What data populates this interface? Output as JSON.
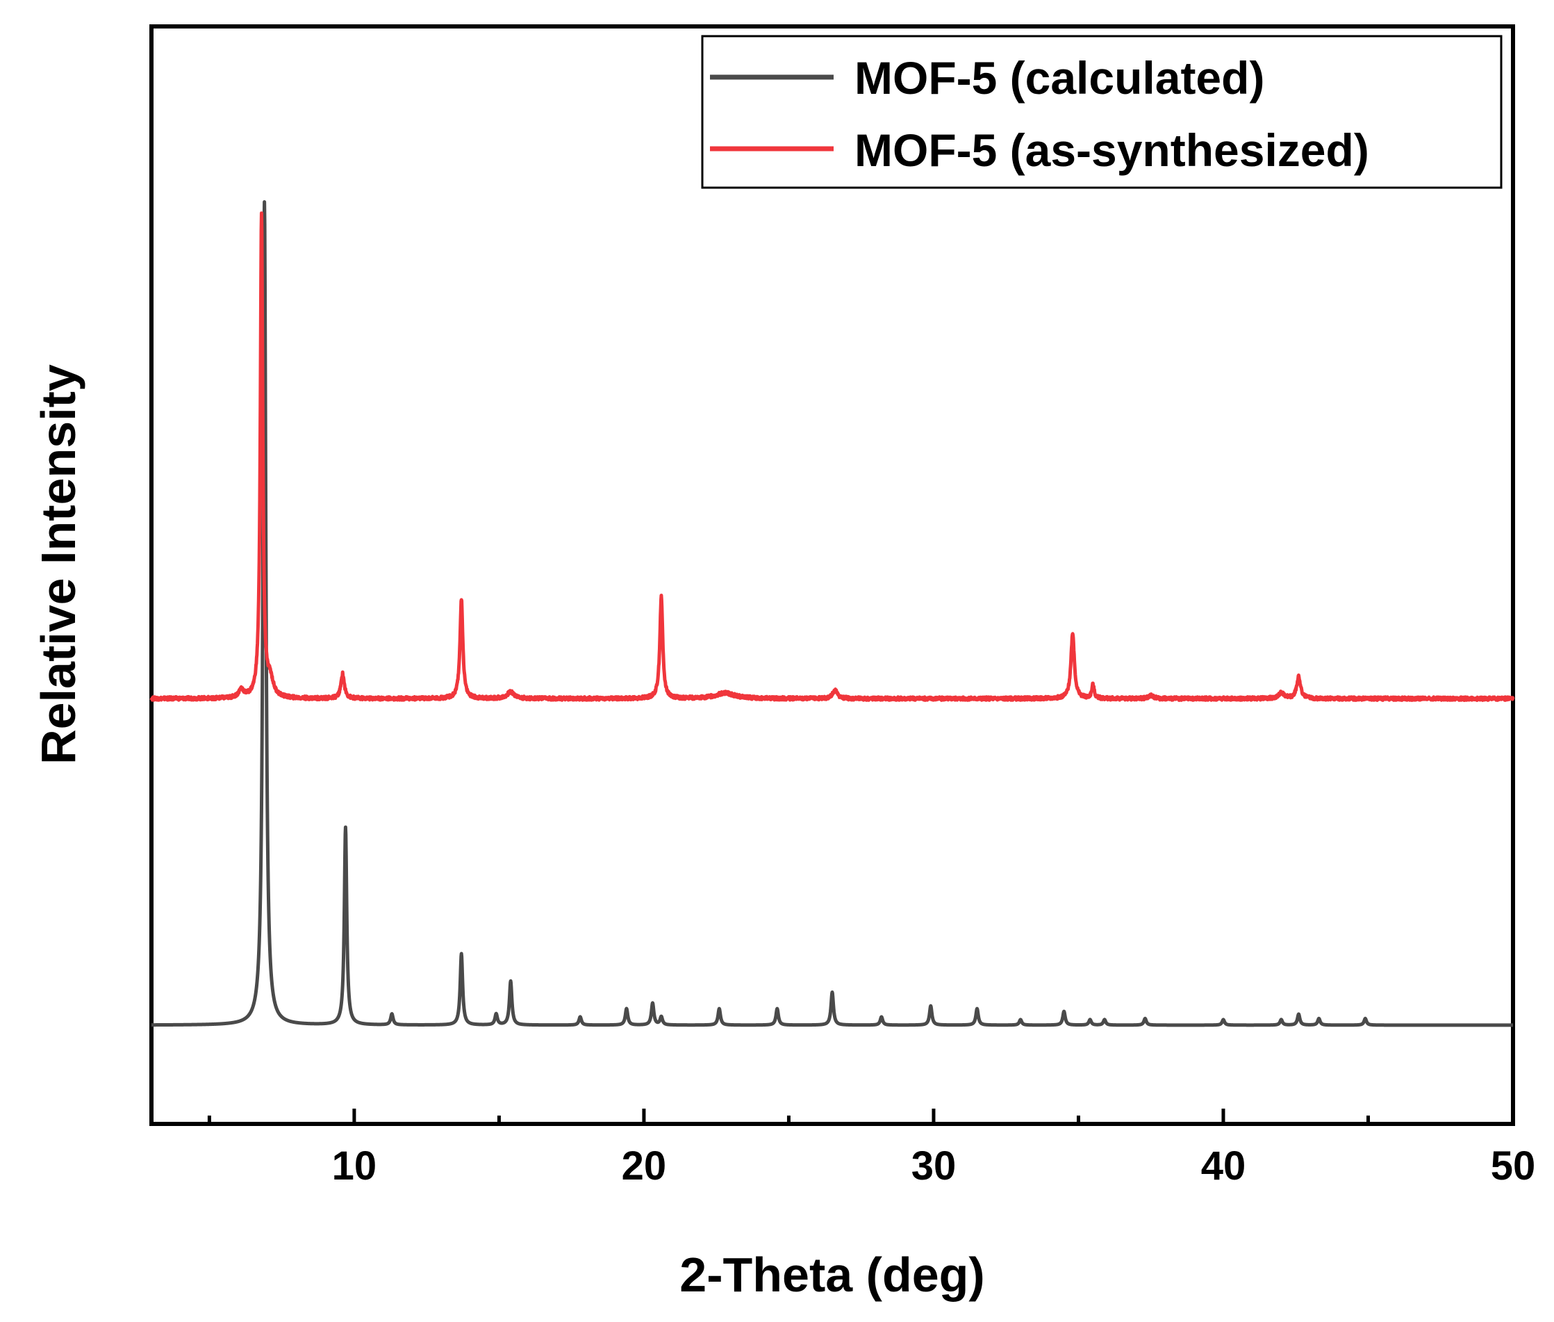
{
  "chart_data": {
    "type": "line",
    "xlabel": "2-Theta (deg)",
    "ylabel": "Relative Intensity",
    "xlim": [
      3,
      50
    ],
    "ylim": [
      -1.8,
      18.2
    ],
    "x_ticks": [
      10,
      20,
      30,
      40,
      50
    ],
    "x_tick_labels": [
      "10",
      "20",
      "30",
      "40",
      "50"
    ],
    "y_ticks_shown": false,
    "grid": false,
    "legend_position": "top-right",
    "series": [
      {
        "name": "MOF-5 (calculated)",
        "label": "MOF-5 (calculated)",
        "color": "#4a4a4a",
        "baseline": 0,
        "peaks": [
          {
            "x": 6.9,
            "height": 15.0,
            "width": 0.06
          },
          {
            "x": 9.7,
            "height": 3.6,
            "width": 0.05
          },
          {
            "x": 11.3,
            "height": 0.2,
            "width": 0.05
          },
          {
            "x": 13.7,
            "height": 1.3,
            "width": 0.05
          },
          {
            "x": 14.9,
            "height": 0.2,
            "width": 0.05
          },
          {
            "x": 15.4,
            "height": 0.8,
            "width": 0.05
          },
          {
            "x": 17.8,
            "height": 0.15,
            "width": 0.05
          },
          {
            "x": 19.4,
            "height": 0.3,
            "width": 0.05
          },
          {
            "x": 20.3,
            "height": 0.4,
            "width": 0.05
          },
          {
            "x": 20.6,
            "height": 0.15,
            "width": 0.05
          },
          {
            "x": 22.6,
            "height": 0.3,
            "width": 0.05
          },
          {
            "x": 24.6,
            "height": 0.3,
            "width": 0.05
          },
          {
            "x": 26.5,
            "height": 0.6,
            "width": 0.05
          },
          {
            "x": 28.2,
            "height": 0.15,
            "width": 0.05
          },
          {
            "x": 29.9,
            "height": 0.35,
            "width": 0.05
          },
          {
            "x": 31.5,
            "height": 0.3,
            "width": 0.05
          },
          {
            "x": 33.0,
            "height": 0.1,
            "width": 0.05
          },
          {
            "x": 34.5,
            "height": 0.25,
            "width": 0.05
          },
          {
            "x": 35.4,
            "height": 0.1,
            "width": 0.05
          },
          {
            "x": 35.9,
            "height": 0.1,
            "width": 0.05
          },
          {
            "x": 37.3,
            "height": 0.12,
            "width": 0.05
          },
          {
            "x": 40.0,
            "height": 0.1,
            "width": 0.05
          },
          {
            "x": 42.0,
            "height": 0.1,
            "width": 0.05
          },
          {
            "x": 42.6,
            "height": 0.2,
            "width": 0.05
          },
          {
            "x": 43.3,
            "height": 0.12,
            "width": 0.05
          },
          {
            "x": 44.9,
            "height": 0.12,
            "width": 0.05
          }
        ]
      },
      {
        "name": "MOF-5 (as-synthesized)",
        "label": "MOF-5 (as-synthesized)",
        "color": "#f0363c",
        "baseline": 5.95,
        "peaks": [
          {
            "x": 6.1,
            "height": 0.15,
            "width": 0.1
          },
          {
            "x": 6.8,
            "height": 8.8,
            "width": 0.05
          },
          {
            "x": 7.1,
            "height": 0.3,
            "width": 0.12
          },
          {
            "x": 9.6,
            "height": 0.45,
            "width": 0.07
          },
          {
            "x": 13.7,
            "height": 1.8,
            "width": 0.06
          },
          {
            "x": 15.4,
            "height": 0.12,
            "width": 0.15
          },
          {
            "x": 20.6,
            "height": 1.85,
            "width": 0.06
          },
          {
            "x": 22.8,
            "height": 0.1,
            "width": 0.4
          },
          {
            "x": 26.6,
            "height": 0.15,
            "width": 0.1
          },
          {
            "x": 34.8,
            "height": 1.2,
            "width": 0.07
          },
          {
            "x": 35.5,
            "height": 0.25,
            "width": 0.05
          },
          {
            "x": 37.5,
            "height": 0.06,
            "width": 0.1
          },
          {
            "x": 42.0,
            "height": 0.1,
            "width": 0.12
          },
          {
            "x": 42.6,
            "height": 0.4,
            "width": 0.08
          }
        ]
      }
    ]
  }
}
